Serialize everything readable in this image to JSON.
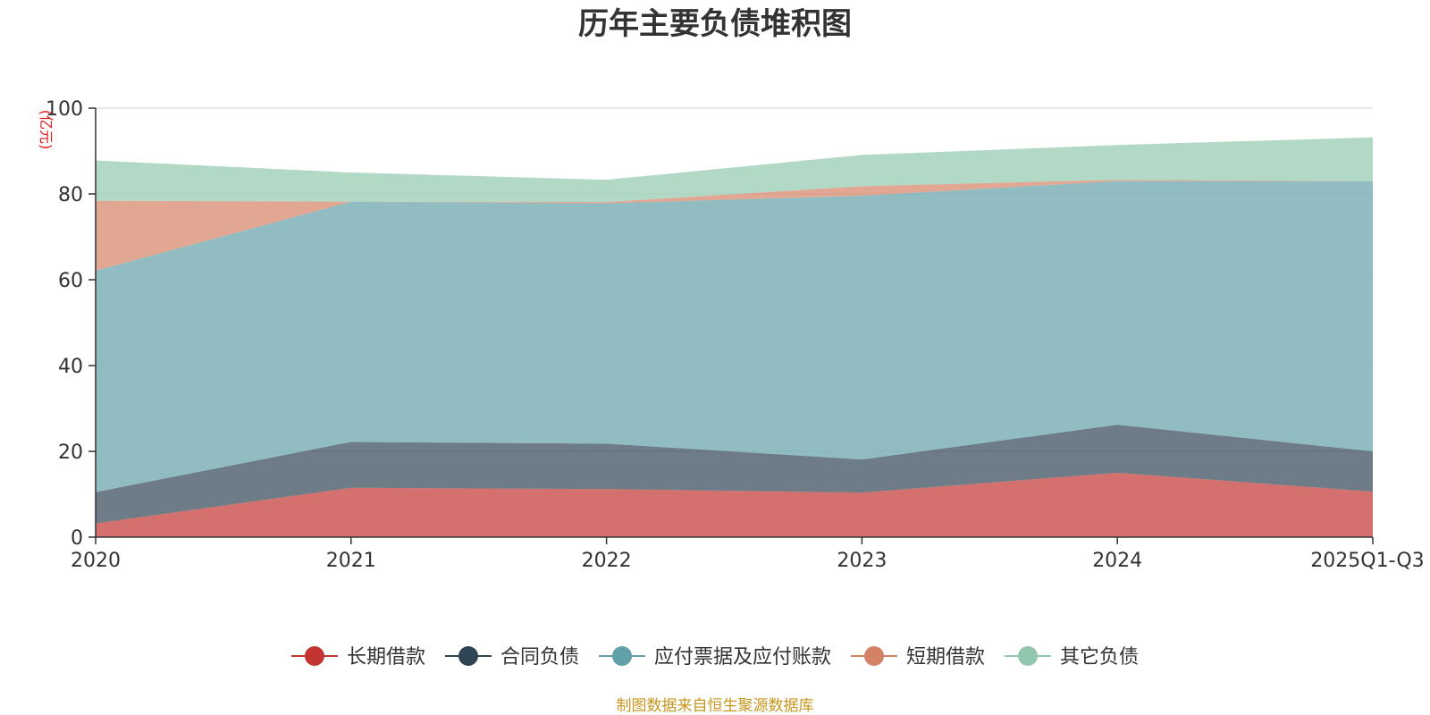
{
  "chart_data": {
    "type": "area",
    "stacked": true,
    "title": "历年主要负债堆积图",
    "unit_label": "(亿元)",
    "unit_color": "#e0191d",
    "categories": [
      "2020",
      "2021",
      "2022",
      "2023",
      "2024",
      "2025Q1-Q3"
    ],
    "ylim": [
      0,
      100
    ],
    "yticks": [
      "0",
      "20",
      "40",
      "60",
      "80",
      "100"
    ],
    "grid": true,
    "legend_position": "bottom-center",
    "series": [
      {
        "name": "长期借款",
        "color": "#c23531",
        "values": [
          3.2,
          11.5,
          11.2,
          10.4,
          15.0,
          10.6
        ]
      },
      {
        "name": "合同负债",
        "color": "#2f4554",
        "values": [
          7.3,
          10.7,
          10.6,
          7.7,
          11.2,
          9.4
        ]
      },
      {
        "name": "应付票据及应付账款",
        "color": "#61a0a8",
        "values": [
          51.6,
          56.0,
          56.0,
          61.5,
          56.8,
          63.0
        ]
      },
      {
        "name": "短期借款",
        "color": "#d48265",
        "values": [
          16.3,
          0.0,
          0.3,
          2.2,
          0.3,
          0.0
        ]
      },
      {
        "name": "其它负债",
        "color": "#91c7ae",
        "values": [
          9.4,
          6.8,
          5.2,
          7.3,
          8.1,
          10.2
        ]
      }
    ],
    "source_text": "制图数据来自恒生聚源数据库",
    "source_color": "#c8961e"
  }
}
